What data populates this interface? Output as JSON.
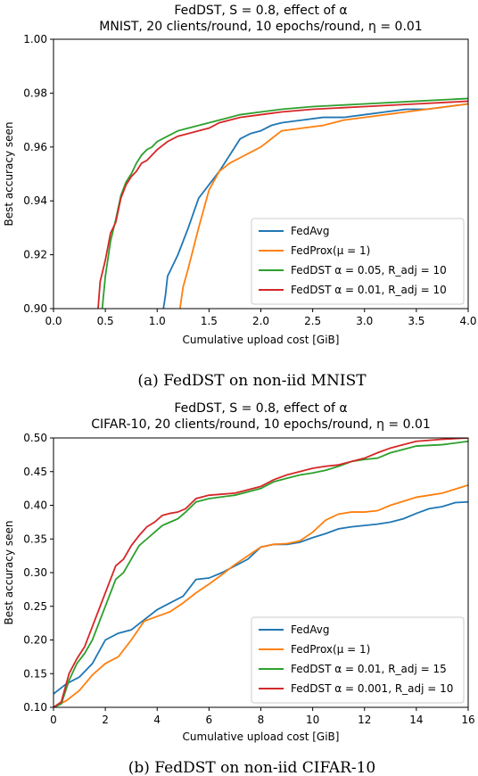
{
  "chart_data": [
    {
      "type": "line",
      "title_line1": "FedDST, S = 0.8, effect of α",
      "title_line2": "MNIST, 20 clients/round, 10 epochs/round, η = 0.01",
      "xlabel": "Cumulative upload cost [GiB]",
      "ylabel": "Best accuracy seen",
      "xlim": [
        0,
        4.0
      ],
      "ylim": [
        0.9,
        1.0
      ],
      "x_ticks": [
        "0.0",
        "0.5",
        "1.0",
        "1.5",
        "2.0",
        "2.5",
        "3.0",
        "3.5",
        "4.0"
      ],
      "y_ticks": [
        "0.90",
        "0.92",
        "0.94",
        "0.96",
        "0.98",
        "1.00"
      ],
      "legend_position": "lower-right",
      "caption": "(a) FedDST on non-iid MNIST",
      "series": [
        {
          "name": "FedAvg",
          "color": "#1f77b4",
          "x": [
            1.06,
            1.08,
            1.1,
            1.2,
            1.3,
            1.4,
            1.5,
            1.6,
            1.7,
            1.8,
            1.9,
            2.0,
            2.1,
            2.2,
            2.4,
            2.6,
            2.8,
            3.0,
            3.2,
            3.4,
            3.6,
            3.8,
            4.0
          ],
          "y": [
            0.9,
            0.905,
            0.912,
            0.92,
            0.93,
            0.941,
            0.946,
            0.951,
            0.957,
            0.963,
            0.965,
            0.966,
            0.968,
            0.969,
            0.97,
            0.971,
            0.971,
            0.972,
            0.973,
            0.974,
            0.974,
            0.975,
            0.976
          ]
        },
        {
          "name": "FedProx(μ = 1)",
          "color": "#ff7f0e",
          "x": [
            1.22,
            1.25,
            1.3,
            1.4,
            1.5,
            1.6,
            1.7,
            1.8,
            1.9,
            2.0,
            2.1,
            2.2,
            2.4,
            2.6,
            2.8,
            3.0,
            3.2,
            3.4,
            3.6,
            3.8,
            4.0
          ],
          "y": [
            0.9,
            0.908,
            0.915,
            0.93,
            0.944,
            0.951,
            0.954,
            0.956,
            0.958,
            0.96,
            0.963,
            0.966,
            0.967,
            0.968,
            0.97,
            0.971,
            0.972,
            0.973,
            0.974,
            0.975,
            0.976
          ]
        },
        {
          "name": "FedDST α = 0.05, R_adj = 10",
          "color": "#2ca02c",
          "x": [
            0.47,
            0.5,
            0.55,
            0.6,
            0.65,
            0.7,
            0.75,
            0.8,
            0.85,
            0.9,
            0.95,
            1.0,
            1.1,
            1.2,
            1.3,
            1.4,
            1.5,
            1.6,
            1.8,
            2.0,
            2.2,
            2.5,
            3.0,
            3.5,
            4.0
          ],
          "y": [
            0.9,
            0.912,
            0.925,
            0.933,
            0.942,
            0.947,
            0.95,
            0.954,
            0.957,
            0.959,
            0.96,
            0.962,
            0.964,
            0.966,
            0.967,
            0.968,
            0.969,
            0.97,
            0.972,
            0.973,
            0.974,
            0.975,
            0.976,
            0.977,
            0.978
          ]
        },
        {
          "name": "FedDST α = 0.01, R_adj = 10",
          "color": "#d62728",
          "x": [
            0.43,
            0.45,
            0.5,
            0.55,
            0.6,
            0.65,
            0.7,
            0.75,
            0.8,
            0.85,
            0.9,
            0.95,
            1.0,
            1.1,
            1.2,
            1.3,
            1.4,
            1.5,
            1.6,
            1.8,
            2.0,
            2.2,
            2.5,
            3.0,
            3.5,
            4.0
          ],
          "y": [
            0.9,
            0.91,
            0.918,
            0.928,
            0.932,
            0.941,
            0.946,
            0.949,
            0.951,
            0.954,
            0.955,
            0.957,
            0.959,
            0.962,
            0.964,
            0.965,
            0.966,
            0.967,
            0.969,
            0.971,
            0.972,
            0.973,
            0.974,
            0.975,
            0.976,
            0.977
          ]
        }
      ]
    },
    {
      "type": "line",
      "title_line1": "FedDST, S = 0.8, effect of α",
      "title_line2": "CIFAR-10, 20 clients/round, 10 epochs/round, η = 0.01",
      "xlabel": "Cumulative upload cost [GiB]",
      "ylabel": "Best accuracy seen",
      "xlim": [
        0,
        16
      ],
      "ylim": [
        0.1,
        0.5
      ],
      "x_ticks": [
        "0",
        "2",
        "4",
        "6",
        "8",
        "10",
        "12",
        "14",
        "16"
      ],
      "y_ticks": [
        "0.10",
        "0.15",
        "0.20",
        "0.25",
        "0.30",
        "0.35",
        "0.40",
        "0.45",
        "0.50"
      ],
      "legend_position": "lower-right",
      "caption": "(b) FedDST on non-iid CIFAR-10",
      "series": [
        {
          "name": "FedAvg",
          "color": "#1f77b4",
          "x": [
            0,
            0.5,
            1,
            1.5,
            2,
            2.5,
            3,
            3.5,
            4,
            4.5,
            5,
            5.5,
            6,
            6.5,
            7,
            7.5,
            8,
            8.5,
            9,
            9.5,
            10,
            10.5,
            11,
            11.5,
            12,
            12.5,
            13,
            13.5,
            14,
            14.5,
            15,
            15.5,
            16
          ],
          "y": [
            0.12,
            0.135,
            0.145,
            0.165,
            0.2,
            0.21,
            0.215,
            0.23,
            0.245,
            0.255,
            0.265,
            0.29,
            0.292,
            0.3,
            0.31,
            0.32,
            0.338,
            0.342,
            0.342,
            0.345,
            0.352,
            0.358,
            0.365,
            0.368,
            0.37,
            0.372,
            0.375,
            0.38,
            0.388,
            0.395,
            0.398,
            0.404,
            0.405
          ]
        },
        {
          "name": "FedProx(μ = 1)",
          "color": "#ff7f0e",
          "x": [
            0,
            0.5,
            1,
            1.5,
            2,
            2.5,
            3,
            3.5,
            4,
            4.5,
            5,
            5.5,
            6,
            6.5,
            7,
            7.5,
            8,
            8.5,
            9,
            9.5,
            10,
            10.5,
            11,
            11.5,
            12,
            12.5,
            13,
            13.5,
            14,
            14.5,
            15,
            15.5,
            16
          ],
          "y": [
            0.1,
            0.11,
            0.125,
            0.148,
            0.165,
            0.175,
            0.2,
            0.228,
            0.235,
            0.242,
            0.255,
            0.27,
            0.283,
            0.297,
            0.312,
            0.325,
            0.338,
            0.342,
            0.343,
            0.347,
            0.36,
            0.378,
            0.387,
            0.39,
            0.39,
            0.392,
            0.4,
            0.406,
            0.412,
            0.415,
            0.418,
            0.424,
            0.43
          ]
        },
        {
          "name": "FedDST α = 0.01, R_adj = 15",
          "color": "#2ca02c",
          "x": [
            0,
            0.3,
            0.6,
            0.9,
            1.2,
            1.5,
            1.8,
            2.1,
            2.4,
            2.7,
            3.0,
            3.3,
            3.6,
            3.9,
            4.2,
            4.5,
            4.8,
            5.1,
            5.5,
            6,
            7,
            8,
            8.5,
            9,
            9.5,
            10,
            10.5,
            11,
            11.5,
            12,
            12.5,
            13,
            13.5,
            14,
            15,
            16
          ],
          "y": [
            0.1,
            0.105,
            0.14,
            0.165,
            0.18,
            0.2,
            0.23,
            0.26,
            0.29,
            0.3,
            0.32,
            0.34,
            0.35,
            0.36,
            0.37,
            0.375,
            0.38,
            0.39,
            0.405,
            0.41,
            0.415,
            0.425,
            0.435,
            0.44,
            0.445,
            0.448,
            0.452,
            0.458,
            0.465,
            0.468,
            0.47,
            0.478,
            0.483,
            0.488,
            0.49,
            0.495
          ]
        },
        {
          "name": "FedDST α = 0.001, R_adj = 10",
          "color": "#d62728",
          "x": [
            0,
            0.3,
            0.6,
            0.9,
            1.2,
            1.5,
            1.8,
            2.1,
            2.4,
            2.7,
            3.0,
            3.3,
            3.6,
            3.9,
            4.2,
            4.5,
            4.8,
            5.1,
            5.5,
            6,
            7,
            8,
            8.5,
            9,
            9.5,
            10,
            10.5,
            11,
            11.5,
            12,
            12.5,
            13,
            13.5,
            14,
            15,
            16
          ],
          "y": [
            0.1,
            0.108,
            0.15,
            0.172,
            0.19,
            0.22,
            0.25,
            0.28,
            0.31,
            0.32,
            0.34,
            0.355,
            0.368,
            0.375,
            0.385,
            0.388,
            0.39,
            0.395,
            0.41,
            0.415,
            0.418,
            0.428,
            0.438,
            0.445,
            0.45,
            0.455,
            0.458,
            0.46,
            0.465,
            0.47,
            0.478,
            0.485,
            0.49,
            0.495,
            0.498,
            0.5
          ]
        }
      ]
    }
  ]
}
